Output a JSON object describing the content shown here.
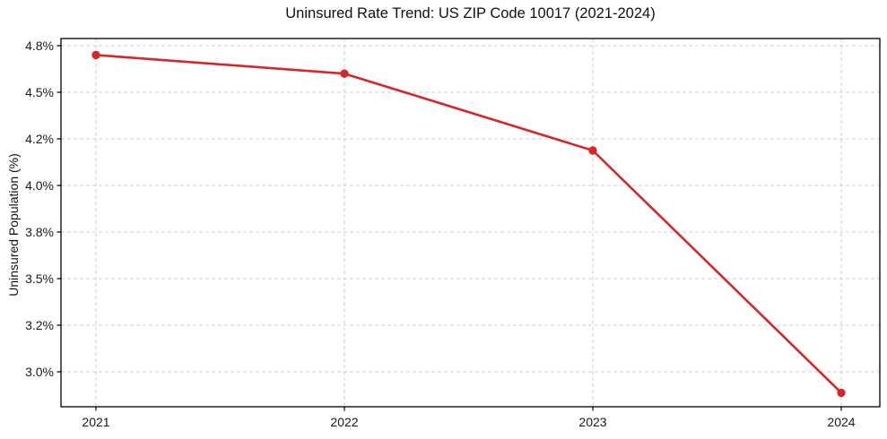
{
  "chart_data": {
    "type": "line",
    "title": "Uninsured Rate Trend: US ZIP Code 10017 (2021-2024)",
    "xlabel": "",
    "ylabel": "Uninsured Population (%)",
    "x": [
      2021,
      2022,
      2023,
      2024
    ],
    "x_tick_labels": [
      "2021",
      "2022",
      "2023",
      "2024"
    ],
    "y_tick_labels": [
      "4.8%",
      "4.5%",
      "4.2%",
      "4.0%",
      "3.8%",
      "3.5%",
      "3.2%",
      "3.0%"
    ],
    "y_tick_values": [
      4.8,
      4.5,
      4.2,
      4.0,
      3.8,
      3.5,
      3.2,
      3.0
    ],
    "series": [
      {
        "name": "Uninsured Population (%)",
        "values": [
          4.74,
          4.62,
          4.15,
          2.91
        ]
      }
    ],
    "legend": "none",
    "grid": "dashed",
    "marker": "circle",
    "colors": {
      "line": "#d62728",
      "marker": "#d62728",
      "grid": "#cccccc",
      "axis": "#000000",
      "text": "#1a1a1a",
      "background": "#ffffff"
    }
  }
}
